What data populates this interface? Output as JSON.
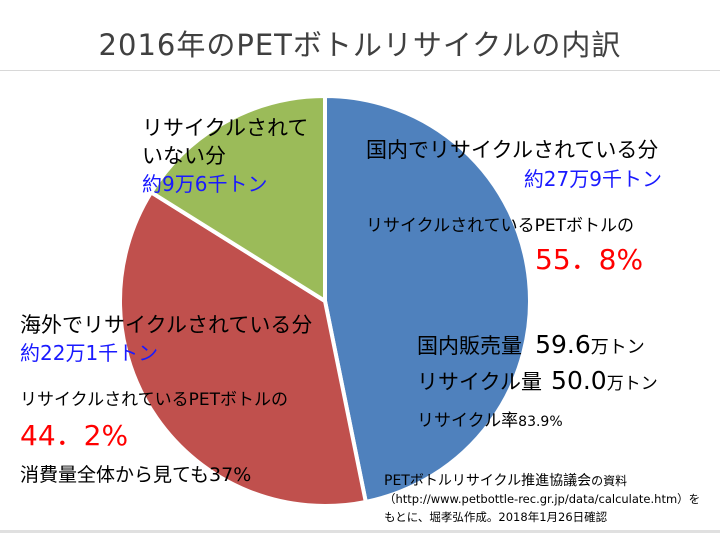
{
  "chart_data": {
    "type": "pie",
    "title": "2016年のPETボトルリサイクルの内訳",
    "unit": "万トン",
    "start_angle": "top",
    "direction": "clockwise",
    "slices": [
      {
        "label": "国内でリサイクルされている分",
        "amount_text": "約27万9千トン",
        "value": 27.9,
        "share_caption": "リサイクルされているPETボトルの",
        "share_text": "55．8%",
        "color": "#4f81bd"
      },
      {
        "label": "海外でリサイクルされている分",
        "amount_text": "約22万1千トン",
        "value": 22.1,
        "share_caption": "リサイクルされているPETボトルの",
        "share_text": "44．2%",
        "extra_text": "消費量全体から見ても37%",
        "color": "#c0504d"
      },
      {
        "label_line1": "リサイクルされて",
        "label_line2": "いない分",
        "amount_text": "約9万6千トン",
        "value": 9.6,
        "color": "#9bbb59"
      }
    ],
    "summary": {
      "sales_label": "国内販売量",
      "sales_value": "59.6",
      "sales_unit": "万トン",
      "recycle_label": "リサイクル量",
      "recycle_value": "50.0",
      "recycle_unit": "万トン",
      "rate_label": "リサイクル率",
      "rate_value": "83.9%"
    },
    "source": {
      "line1_main": "PETボトルリサイクル推進協議会",
      "line1_tail": "の資料",
      "line2": "（http://www.petbottle-rec.gr.jp/data/calculate.htm）を",
      "line3": "もとに、堀孝弘作成。2018年1月26日確認"
    }
  }
}
